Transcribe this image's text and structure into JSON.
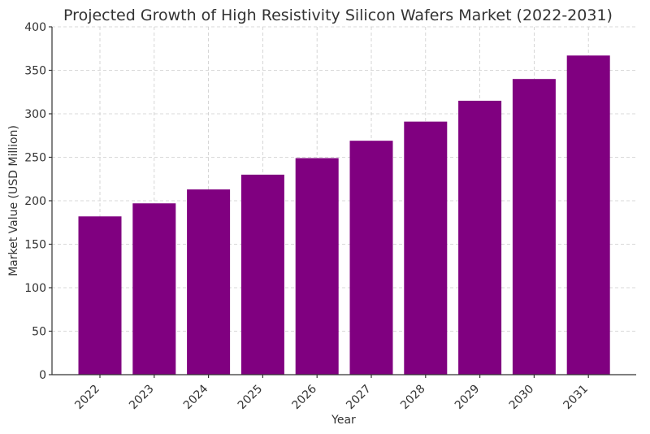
{
  "chart_data": {
    "type": "bar",
    "title": "Projected Growth of High Resistivity Silicon Wafers Market (2022-2031)",
    "xlabel": "Year",
    "ylabel": "Market Value (USD Million)",
    "categories": [
      "2022",
      "2023",
      "2024",
      "2025",
      "2026",
      "2027",
      "2028",
      "2029",
      "2030",
      "2031"
    ],
    "values": [
      182,
      197,
      213,
      230,
      249,
      269,
      291,
      315,
      340,
      367
    ],
    "ylim": [
      0,
      400
    ],
    "yticks": [
      0,
      50,
      100,
      150,
      200,
      250,
      300,
      350,
      400
    ],
    "grid": true,
    "bar_color": "#800080"
  }
}
